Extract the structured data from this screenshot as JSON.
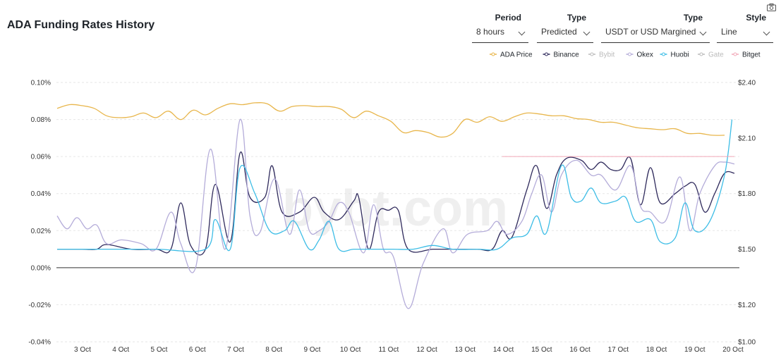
{
  "page": {
    "title": "ADA Funding Rates History",
    "camera_icon": "camera-icon"
  },
  "controls": [
    {
      "label": "Period",
      "value": "8 hours"
    },
    {
      "label": "Type",
      "value": "Predicted"
    },
    {
      "label": "Type",
      "value": "USDT or USD Margined"
    },
    {
      "label": "Style",
      "value": "Line"
    }
  ],
  "chart_data": {
    "type": "line",
    "watermark": "bybt.com",
    "x": [
      "3 Oct",
      "4 Oct",
      "5 Oct",
      "6 Oct",
      "7 Oct",
      "8 Oct",
      "9 Oct",
      "10 Oct",
      "11 Oct",
      "12 Oct",
      "13 Oct",
      "14 Oct",
      "15 Oct",
      "16 Oct",
      "17 Oct",
      "18 Oct",
      "19 Oct",
      "20 Oct"
    ],
    "y_left": {
      "min": -0.04,
      "max": 0.1,
      "ticks": [
        "0.10%",
        "0.08%",
        "0.06%",
        "0.04%",
        "0.02%",
        "0.00%",
        "-0.02%",
        "-0.04%"
      ]
    },
    "y_right": {
      "min": 1.0,
      "max": 2.4,
      "ticks": [
        "$2.40",
        "$2.10",
        "$1.80",
        "$1.50",
        "$1.20",
        "$1.00"
      ]
    },
    "legend": [
      {
        "name": "ADA Price",
        "color": "#e8b64c",
        "active": true
      },
      {
        "name": "Binance",
        "color": "#2f2a5c",
        "active": true
      },
      {
        "name": "Bybit",
        "color": "#bbbbbb",
        "active": false
      },
      {
        "name": "Okex",
        "color": "#b4acd9",
        "active": true
      },
      {
        "name": "Huobi",
        "color": "#3dbde6",
        "active": true
      },
      {
        "name": "Gate",
        "color": "#bbbbbb",
        "active": false
      },
      {
        "name": "Bitget",
        "color": "#f2a9b8",
        "active": true
      }
    ],
    "series": [
      {
        "name": "ADA Price",
        "axis": "right",
        "color": "#e8b64c",
        "points": [
          [
            0,
            2.26
          ],
          [
            0.25,
            2.28
          ],
          [
            0.5,
            2.275
          ],
          [
            0.75,
            2.26
          ],
          [
            1,
            2.22
          ],
          [
            1.25,
            2.21
          ],
          [
            1.5,
            2.215
          ],
          [
            1.75,
            2.235
          ],
          [
            2,
            2.21
          ],
          [
            2.25,
            2.245
          ],
          [
            2.5,
            2.2
          ],
          [
            2.75,
            2.25
          ],
          [
            3,
            2.225
          ],
          [
            3.25,
            2.26
          ],
          [
            3.5,
            2.285
          ],
          [
            3.75,
            2.28
          ],
          [
            4,
            2.29
          ],
          [
            4.25,
            2.285
          ],
          [
            4.5,
            2.245
          ],
          [
            4.75,
            2.27
          ],
          [
            5,
            2.275
          ],
          [
            5.25,
            2.27
          ],
          [
            5.5,
            2.27
          ],
          [
            5.75,
            2.255
          ],
          [
            6,
            2.21
          ],
          [
            6.25,
            2.245
          ],
          [
            6.5,
            2.22
          ],
          [
            6.75,
            2.19
          ],
          [
            7,
            2.13
          ],
          [
            7.25,
            2.14
          ],
          [
            7.5,
            2.13
          ],
          [
            7.75,
            2.105
          ],
          [
            8,
            2.125
          ],
          [
            8.25,
            2.2
          ],
          [
            8.5,
            2.185
          ],
          [
            8.75,
            2.215
          ],
          [
            9,
            2.19
          ],
          [
            9.25,
            2.215
          ],
          [
            9.5,
            2.235
          ],
          [
            9.75,
            2.23
          ],
          [
            10,
            2.22
          ],
          [
            10.25,
            2.22
          ],
          [
            10.5,
            2.205
          ],
          [
            10.75,
            2.2
          ],
          [
            11,
            2.185
          ],
          [
            11.25,
            2.185
          ],
          [
            11.5,
            2.17
          ],
          [
            11.75,
            2.155
          ],
          [
            12,
            2.15
          ],
          [
            12.25,
            2.145
          ],
          [
            12.5,
            2.15
          ],
          [
            12.75,
            2.125
          ],
          [
            13,
            2.125
          ],
          [
            13.25,
            2.115
          ],
          [
            13.5,
            2.115
          ]
        ]
      },
      {
        "name": "Binance",
        "axis": "left",
        "color": "#2f2a5c",
        "points": [
          [
            0,
            0.01
          ],
          [
            0.5,
            0.01
          ],
          [
            0.8,
            0.01
          ],
          [
            1,
            0.0125
          ],
          [
            1.5,
            0.01
          ],
          [
            2,
            0.01
          ],
          [
            2.3,
            0.01
          ],
          [
            2.5,
            0.035
          ],
          [
            2.7,
            0.012
          ],
          [
            3,
            0.01
          ],
          [
            3.2,
            0.045
          ],
          [
            3.5,
            0.014
          ],
          [
            3.7,
            0.062
          ],
          [
            3.9,
            0.038
          ],
          [
            4.2,
            0.038
          ],
          [
            4.35,
            0.055
          ],
          [
            4.55,
            0.03
          ],
          [
            4.9,
            0.03
          ],
          [
            5.2,
            0.038
          ],
          [
            5.4,
            0.03
          ],
          [
            5.7,
            0.026
          ],
          [
            6,
            0.036
          ],
          [
            6.1,
            0.038
          ],
          [
            6.3,
            0.01
          ],
          [
            6.5,
            0.03
          ],
          [
            6.7,
            0.031
          ],
          [
            6.9,
            0.031
          ],
          [
            7.1,
            0.01
          ],
          [
            7.6,
            0.01
          ],
          [
            8.0,
            0.01
          ],
          [
            8.5,
            0.01
          ],
          [
            8.8,
            0.01
          ],
          [
            9.0,
            0.02
          ],
          [
            9.2,
            0.0165
          ],
          [
            9.5,
            0.042
          ],
          [
            9.7,
            0.055
          ],
          [
            9.9,
            0.032
          ],
          [
            10.1,
            0.05
          ],
          [
            10.3,
            0.059
          ],
          [
            10.6,
            0.058
          ],
          [
            10.8,
            0.053
          ],
          [
            11.0,
            0.057
          ],
          [
            11.2,
            0.053
          ],
          [
            11.4,
            0.053
          ],
          [
            11.6,
            0.059
          ],
          [
            11.8,
            0.034
          ],
          [
            12.0,
            0.054
          ],
          [
            12.2,
            0.035
          ],
          [
            12.5,
            0.04
          ],
          [
            12.7,
            0.044
          ],
          [
            12.9,
            0.045
          ],
          [
            13.1,
            0.03
          ],
          [
            13.3,
            0.04
          ],
          [
            13.5,
            0.051
          ],
          [
            13.7,
            0.051
          ]
        ]
      },
      {
        "name": "Okex",
        "axis": "left",
        "color": "#b4acd9",
        "points": [
          [
            0,
            0.028
          ],
          [
            0.2,
            0.021
          ],
          [
            0.4,
            0.027
          ],
          [
            0.6,
            0.021
          ],
          [
            0.8,
            0.023
          ],
          [
            1.0,
            0.013
          ],
          [
            1.3,
            0.015
          ],
          [
            1.7,
            0.013
          ],
          [
            2.0,
            0.01
          ],
          [
            2.3,
            0.03
          ],
          [
            2.5,
            0.013
          ],
          [
            2.8,
            0.0
          ],
          [
            3.1,
            0.064
          ],
          [
            3.4,
            0.01
          ],
          [
            3.7,
            0.08
          ],
          [
            3.9,
            0.028
          ],
          [
            4.1,
            0.019
          ],
          [
            4.4,
            0.048
          ],
          [
            4.7,
            0.018
          ],
          [
            4.9,
            0.042
          ],
          [
            5.1,
            0.02
          ],
          [
            5.3,
            0.02
          ],
          [
            5.5,
            0.025
          ],
          [
            5.7,
            0.035
          ],
          [
            5.9,
            0.03
          ],
          [
            6.2,
            0.008
          ],
          [
            6.4,
            0.034
          ],
          [
            6.6,
            0.01
          ],
          [
            6.8,
            0.006
          ],
          [
            7.1,
            -0.022
          ],
          [
            7.4,
            0.002
          ],
          [
            7.8,
            0.021
          ],
          [
            8.0,
            0.008
          ],
          [
            8.3,
            0.018
          ],
          [
            8.7,
            0.02
          ],
          [
            8.9,
            0.025
          ],
          [
            9.1,
            0.018
          ],
          [
            9.4,
            0.025
          ],
          [
            9.6,
            0.04
          ],
          [
            9.8,
            0.05
          ],
          [
            10.0,
            0.03
          ],
          [
            10.2,
            0.05
          ],
          [
            10.5,
            0.058
          ],
          [
            10.8,
            0.05
          ],
          [
            11.0,
            0.05
          ],
          [
            11.3,
            0.042
          ],
          [
            11.6,
            0.055
          ],
          [
            11.8,
            0.033
          ],
          [
            12.0,
            0.03
          ],
          [
            12.3,
            0.025
          ],
          [
            12.6,
            0.049
          ],
          [
            12.8,
            0.02
          ],
          [
            13.0,
            0.04
          ],
          [
            13.3,
            0.055
          ],
          [
            13.5,
            0.057
          ],
          [
            13.7,
            0.056
          ]
        ]
      },
      {
        "name": "Huobi",
        "axis": "left",
        "color": "#3dbde6",
        "points": [
          [
            0,
            0.01
          ],
          [
            1.0,
            0.01
          ],
          [
            2.0,
            0.01
          ],
          [
            3.0,
            0.01
          ],
          [
            3.2,
            0.026
          ],
          [
            3.5,
            0.01
          ],
          [
            3.7,
            0.054
          ],
          [
            4.0,
            0.04
          ],
          [
            4.3,
            0.02
          ],
          [
            4.6,
            0.02
          ],
          [
            4.8,
            0.025
          ],
          [
            5.1,
            0.01
          ],
          [
            5.3,
            0.015
          ],
          [
            5.5,
            0.025
          ],
          [
            5.7,
            0.01
          ],
          [
            6.0,
            0.01
          ],
          [
            6.3,
            0.01
          ],
          [
            6.5,
            0.01
          ],
          [
            6.8,
            0.01
          ],
          [
            7.2,
            0.01
          ],
          [
            7.6,
            0.012
          ],
          [
            8.0,
            0.01
          ],
          [
            8.5,
            0.01
          ],
          [
            8.9,
            0.01
          ],
          [
            9.2,
            0.016
          ],
          [
            9.5,
            0.018
          ],
          [
            9.7,
            0.028
          ],
          [
            9.9,
            0.019
          ],
          [
            10.2,
            0.055
          ],
          [
            10.4,
            0.038
          ],
          [
            10.6,
            0.036
          ],
          [
            10.8,
            0.043
          ],
          [
            11.0,
            0.035
          ],
          [
            11.3,
            0.036
          ],
          [
            11.5,
            0.038
          ],
          [
            11.7,
            0.025
          ],
          [
            12.0,
            0.026
          ],
          [
            12.2,
            0.014
          ],
          [
            12.5,
            0.016
          ],
          [
            12.7,
            0.035
          ],
          [
            12.9,
            0.02
          ],
          [
            13.2,
            0.025
          ],
          [
            13.5,
            0.05
          ],
          [
            13.65,
            0.08
          ]
        ]
      },
      {
        "name": "Bitget",
        "axis": "left",
        "color": "#f2a9b8",
        "points": [
          [
            9.0,
            0.06
          ],
          [
            13.7,
            0.06
          ]
        ]
      }
    ]
  }
}
